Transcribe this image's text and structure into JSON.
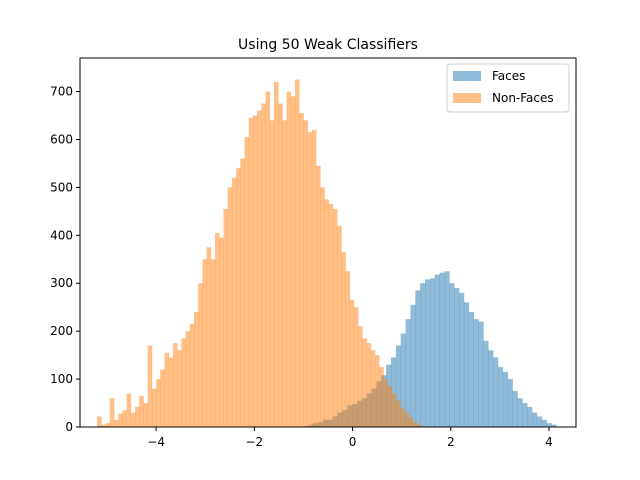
{
  "chart_data": {
    "type": "bar",
    "subtype": "overlapping-histogram",
    "title": "Using 50 Weak Classifiers",
    "xlabel": "",
    "ylabel": "",
    "xlim": [
      -5.55,
      4.55
    ],
    "ylim": [
      0,
      770
    ],
    "xticks": [
      -4,
      -2,
      0,
      2,
      4
    ],
    "yticks": [
      0,
      100,
      200,
      300,
      400,
      500,
      600,
      700
    ],
    "grid": false,
    "legend_position": "top-right",
    "series": [
      {
        "name": "Faces",
        "color": "#1f77b4",
        "opacity": 0.5,
        "range": [
          -1.0,
          4.15
        ],
        "values": [
          2,
          5,
          8,
          10,
          15,
          15,
          22,
          30,
          35,
          45,
          48,
          55,
          60,
          70,
          80,
          95,
          108,
          130,
          145,
          170,
          195,
          225,
          255,
          285,
          300,
          308,
          310,
          318,
          322,
          325,
          300,
          290,
          280,
          260,
          240,
          225,
          220,
          180,
          160,
          145,
          125,
          115,
          100,
          75,
          60,
          50,
          42,
          30,
          22,
          15,
          8,
          5
        ]
      },
      {
        "name": "Non-Faces",
        "color": "#ff7f0e",
        "opacity": 0.5,
        "range": [
          -5.2,
          1.4
        ],
        "values": [
          22,
          5,
          8,
          60,
          15,
          28,
          35,
          70,
          30,
          42,
          65,
          50,
          170,
          80,
          100,
          120,
          155,
          145,
          175,
          160,
          185,
          200,
          215,
          240,
          300,
          350,
          375,
          350,
          405,
          395,
          455,
          500,
          520,
          540,
          560,
          605,
          645,
          650,
          660,
          675,
          700,
          640,
          720,
          675,
          640,
          700,
          690,
          725,
          655,
          640,
          615,
          620,
          545,
          500,
          475,
          465,
          455,
          420,
          365,
          325,
          265,
          250,
          210,
          185,
          175,
          160,
          150,
          125,
          100,
          85,
          70,
          55,
          40,
          30,
          20,
          10,
          5
        ]
      }
    ]
  }
}
